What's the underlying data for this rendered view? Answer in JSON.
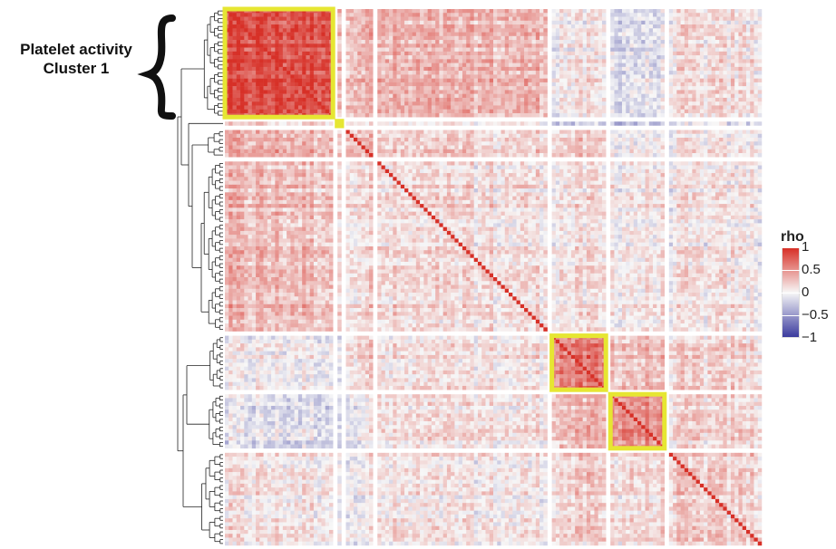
{
  "annotation": {
    "line1": "Platelet activity",
    "line2": "Cluster 1"
  },
  "chart_data": {
    "type": "heatmap",
    "title": "",
    "description_visible": "Clustered correlation heatmap with left-side dendrogram",
    "legend": {
      "title": "rho",
      "placement": "right",
      "ticks": [
        {
          "value": 1,
          "label": "1"
        },
        {
          "value": 0.5,
          "label": "0.5"
        },
        {
          "value": 0,
          "label": "0"
        },
        {
          "value": -0.5,
          "label": "−0.5"
        },
        {
          "value": -1,
          "label": "−1"
        }
      ],
      "range": [
        -1,
        1
      ]
    },
    "colors": {
      "positive": "#d73027",
      "neutral": "#f7f7f7",
      "negative": "#3b3b9e",
      "highlight_box": "#e6e632"
    },
    "clusters": [
      {
        "id": 1,
        "size": 28,
        "within_rho": 0.82,
        "highlighted": true
      },
      {
        "id": 2,
        "size": 1,
        "within_rho": 1.0,
        "highlighted": true
      },
      {
        "id": 3,
        "size": 7,
        "within_rho": 0.35,
        "highlighted": false
      },
      {
        "id": 4,
        "size": 44,
        "within_rho": 0.12,
        "highlighted": false
      },
      {
        "id": 5,
        "size": 14,
        "within_rho": 0.62,
        "highlighted": true
      },
      {
        "id": 6,
        "size": 14,
        "within_rho": 0.52,
        "highlighted": true
      },
      {
        "id": 7,
        "size": 24,
        "within_rho": 0.18,
        "highlighted": false
      }
    ],
    "between_cluster_rho": [
      [
        0.82,
        0.2,
        0.35,
        0.3,
        0.02,
        -0.12,
        0.08
      ],
      [
        0.2,
        1.0,
        0.15,
        0.05,
        -0.2,
        -0.25,
        -0.1
      ],
      [
        0.35,
        0.15,
        0.35,
        0.18,
        0.22,
        0.02,
        0.05
      ],
      [
        0.3,
        0.05,
        0.18,
        0.12,
        0.1,
        0.08,
        0.06
      ],
      [
        0.02,
        -0.2,
        0.22,
        0.1,
        0.62,
        0.3,
        0.18
      ],
      [
        -0.12,
        -0.25,
        0.02,
        0.08,
        0.3,
        0.52,
        0.15
      ],
      [
        0.08,
        -0.1,
        0.05,
        0.06,
        0.18,
        0.15,
        0.18
      ]
    ]
  }
}
